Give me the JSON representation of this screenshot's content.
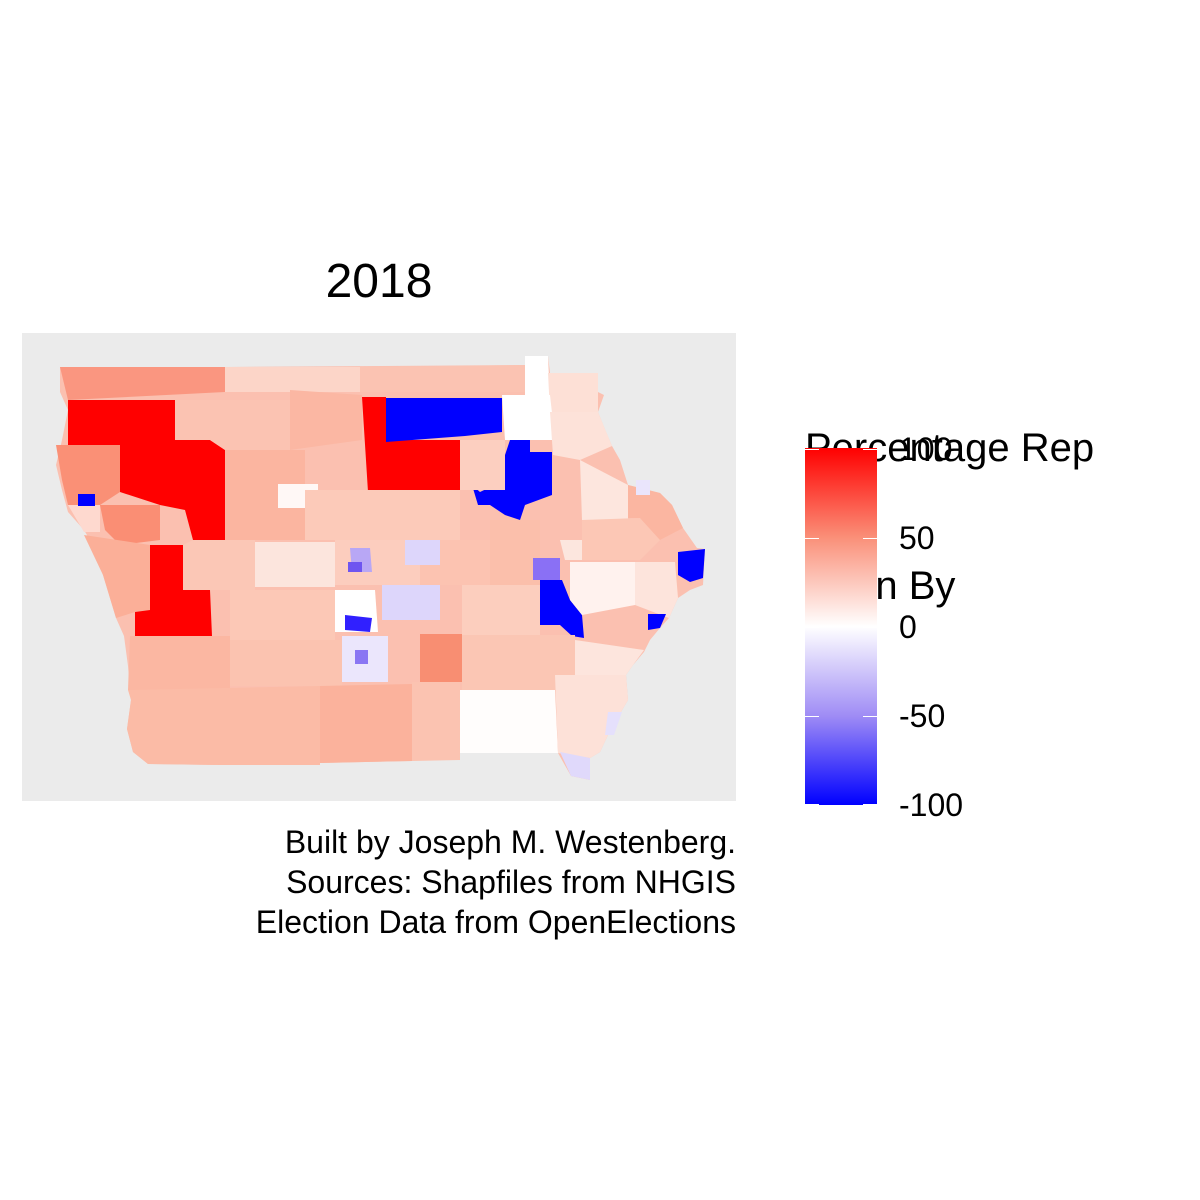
{
  "title": "2018",
  "legend": {
    "title_line1": "Percentage Rep",
    "title_line2": " Won By",
    "labels": [
      "100",
      "50",
      "0",
      "-50",
      "-100"
    ],
    "scale": {
      "min": -100,
      "max": 100
    },
    "colors": {
      "high": "#ff0000",
      "mid": "#ffffff",
      "low": "#0000ff"
    }
  },
  "caption": {
    "line1": "Built by Joseph M. Westenberg.",
    "line2": "Sources: Shapfiles from NHGIS",
    "line3": "Election Data from OpenElections"
  },
  "map": {
    "panel_background": "#ebebeb",
    "region": "Iowa state legislative districts"
  }
}
